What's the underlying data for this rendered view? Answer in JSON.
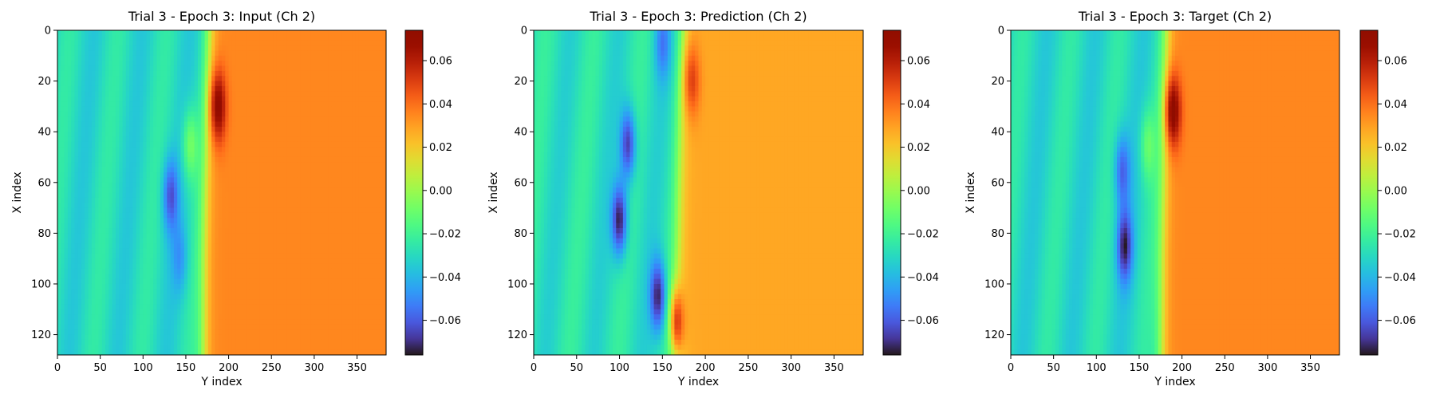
{
  "chart_data": [
    {
      "type": "heatmap",
      "title": "Trial 3 - Epoch 3: Input (Ch 2)",
      "xlabel": "Y index",
      "ylabel": "X index",
      "xlim": [
        0,
        384
      ],
      "ylim": [
        128,
        0
      ],
      "xticks": [
        0,
        50,
        100,
        150,
        200,
        250,
        300,
        350
      ],
      "yticks": [
        0,
        20,
        40,
        60,
        80,
        100,
        120
      ],
      "colorbar": {
        "min": -0.076,
        "max": 0.074,
        "ticks": [
          0.06,
          0.04,
          0.02,
          0.0,
          -0.02,
          -0.04,
          -0.06
        ]
      },
      "colormap": "turbo",
      "field": {
        "background": -0.03,
        "front_position": [
          [
            0,
            178
          ],
          [
            30,
            176
          ],
          [
            60,
            173
          ],
          [
            90,
            171
          ],
          [
            128,
            170
          ]
        ],
        "right_value": 0.035,
        "features": [
          {
            "row": 30,
            "col": 188,
            "value": 0.072
          },
          {
            "row": 65,
            "col": 132,
            "value": -0.06
          },
          {
            "row": 90,
            "col": 143,
            "value": -0.045
          },
          {
            "row": 45,
            "col": 155,
            "value": -0.005
          }
        ]
      }
    },
    {
      "type": "heatmap",
      "title": "Trial 3 - Epoch 3: Prediction (Ch 2)",
      "xlabel": "Y index",
      "ylabel": "X index",
      "xlim": [
        0,
        384
      ],
      "ylim": [
        128,
        0
      ],
      "xticks": [
        0,
        50,
        100,
        150,
        200,
        250,
        300,
        350
      ],
      "yticks": [
        0,
        20,
        40,
        60,
        80,
        100,
        120
      ],
      "colorbar": {
        "min": -0.076,
        "max": 0.074,
        "ticks": [
          0.06,
          0.04,
          0.02,
          0.0,
          -0.02,
          -0.04,
          -0.06
        ]
      },
      "colormap": "turbo",
      "field": {
        "background": -0.028,
        "front_position": [
          [
            0,
            175
          ],
          [
            30,
            172
          ],
          [
            60,
            170
          ],
          [
            90,
            168
          ],
          [
            128,
            170
          ]
        ],
        "right_value": 0.028,
        "features": [
          {
            "row": 45,
            "col": 110,
            "value": -0.07
          },
          {
            "row": 75,
            "col": 100,
            "value": -0.076
          },
          {
            "row": 105,
            "col": 145,
            "value": -0.072
          },
          {
            "row": 115,
            "col": 168,
            "value": 0.05
          },
          {
            "row": 20,
            "col": 185,
            "value": 0.05
          },
          {
            "row": 5,
            "col": 150,
            "value": -0.05
          }
        ]
      }
    },
    {
      "type": "heatmap",
      "title": "Trial 3 - Epoch 3: Target (Ch 2)",
      "xlabel": "Y index",
      "ylabel": "X index",
      "xlim": [
        0,
        384
      ],
      "ylim": [
        128,
        0
      ],
      "xticks": [
        0,
        50,
        100,
        150,
        200,
        250,
        300,
        350
      ],
      "yticks": [
        0,
        20,
        40,
        60,
        80,
        100,
        120
      ],
      "colorbar": {
        "min": -0.076,
        "max": 0.074,
        "ticks": [
          0.06,
          0.04,
          0.02,
          0.0,
          -0.02,
          -0.04,
          -0.06
        ]
      },
      "colormap": "turbo",
      "field": {
        "background": -0.03,
        "front_position": [
          [
            0,
            182
          ],
          [
            30,
            180
          ],
          [
            60,
            178
          ],
          [
            90,
            176
          ],
          [
            128,
            175
          ]
        ],
        "right_value": 0.035,
        "features": [
          {
            "row": 32,
            "col": 190,
            "value": 0.074
          },
          {
            "row": 55,
            "col": 130,
            "value": -0.058
          },
          {
            "row": 85,
            "col": 133,
            "value": -0.07
          },
          {
            "row": 45,
            "col": 160,
            "value": -0.01
          }
        ]
      }
    }
  ]
}
